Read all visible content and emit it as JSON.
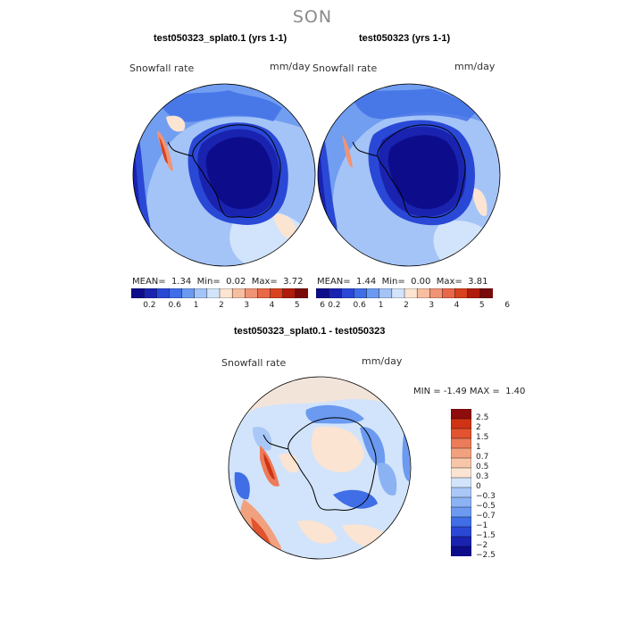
{
  "season": "SON",
  "palette_seq": [
    "#0d0d8c",
    "#1a23b0",
    "#2a48d6",
    "#3f6ee6",
    "#6b9af0",
    "#a4c4f7",
    "#d2e4fb",
    "#fbe4d2",
    "#f7bea0",
    "#f09476",
    "#e86848",
    "#d8421f",
    "#b01c0c",
    "#7a0a0a"
  ],
  "palette_diff": [
    "#0d0d8c",
    "#1a23b0",
    "#2a48d6",
    "#3f6ee6",
    "#6b9af0",
    "#8bb3f4",
    "#a9c7f7",
    "#d2e4fb",
    "#fbe4d2",
    "#f7c6a8",
    "#f2a17f",
    "#ec7b59",
    "#e25330",
    "#cf3314",
    "#8f0c0c"
  ],
  "panels": [
    {
      "title": "test050323_splat0.1 (yrs 1-1)",
      "variable": "Snowfall rate",
      "units": "mm/day",
      "stats": {
        "mean_label": "MEAN=",
        "mean": "1.34",
        "min_label": "Min=",
        "min": "0.02",
        "max_label": "Max=",
        "max": "3.72"
      },
      "colorbar_ticks": [
        "0.2",
        "0.6",
        "1",
        "2",
        "3",
        "4",
        "5",
        "6"
      ]
    },
    {
      "title": "test050323 (yrs 1-1)",
      "variable": "Snowfall rate",
      "units": "mm/day",
      "stats": {
        "mean_label": "MEAN=",
        "mean": "1.44",
        "min_label": "Min=",
        "min": "0.00",
        "max_label": "Max=",
        "max": "3.81"
      },
      "colorbar_ticks": [
        "0.2",
        "0.6",
        "1",
        "2",
        "3",
        "4",
        "5",
        "6"
      ]
    },
    {
      "title": "test050323_splat0.1 - test050323",
      "variable": "Snowfall rate",
      "units": "mm/day",
      "stats": {
        "min_label": "MIN =",
        "min": "-1.49",
        "max_label": "MAX =",
        "max": "1.40"
      },
      "colorbar_ticks": [
        "2.5",
        "2",
        "1.5",
        "1",
        "0.7",
        "0.5",
        "0.3",
        "0",
        "−0.3",
        "−0.5",
        "−0.7",
        "−1",
        "−1.5",
        "−2",
        "−2.5"
      ]
    }
  ],
  "chart_data": [
    {
      "type": "heatmap",
      "title": "test050323_splat0.1 (yrs 1-1)",
      "projection": "south polar stereographic",
      "variable": "Snowfall rate",
      "units": "mm/day",
      "levels": [
        0.2,
        0.6,
        1,
        2,
        3,
        4,
        5,
        6
      ],
      "mean": 1.34,
      "min": 0.02,
      "max": 3.72
    },
    {
      "type": "heatmap",
      "title": "test050323 (yrs 1-1)",
      "projection": "south polar stereographic",
      "variable": "Snowfall rate",
      "units": "mm/day",
      "levels": [
        0.2,
        0.6,
        1,
        2,
        3,
        4,
        5,
        6
      ],
      "mean": 1.44,
      "min": 0.0,
      "max": 3.81
    },
    {
      "type": "heatmap",
      "title": "test050323_splat0.1 - test050323",
      "projection": "south polar stereographic",
      "variable": "Snowfall rate",
      "units": "mm/day",
      "levels": [
        -2.5,
        -2,
        -1.5,
        -1,
        -0.7,
        -0.5,
        -0.3,
        0,
        0.3,
        0.5,
        0.7,
        1,
        1.5,
        2,
        2.5
      ],
      "min": -1.49,
      "max": 1.4
    }
  ]
}
